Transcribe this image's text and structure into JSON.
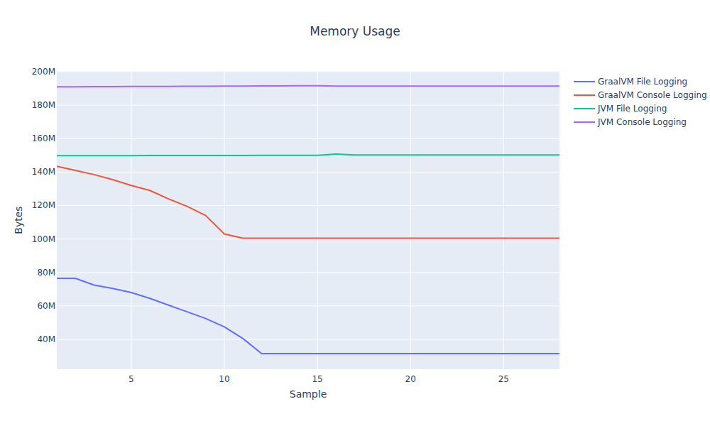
{
  "chart_data": {
    "type": "line",
    "title": "Memory Usage",
    "x_label": "Sample",
    "y_label": "Bytes",
    "x": [
      1,
      2,
      3,
      4,
      5,
      6,
      7,
      8,
      9,
      10,
      11,
      12,
      13,
      14,
      15,
      16,
      17,
      18,
      19,
      20,
      21,
      22,
      23,
      24,
      25,
      26,
      27,
      28
    ],
    "series": [
      {
        "name": "GraalVM File Logging",
        "color": "#636efa",
        "values": [
          76500000,
          76500000,
          72500000,
          70500000,
          68000000,
          64500000,
          60500000,
          56500000,
          52500000,
          47500000,
          40500000,
          31500000,
          31500000,
          31500000,
          31500000,
          31500000,
          31500000,
          31500000,
          31500000,
          31500000,
          31500000,
          31500000,
          31500000,
          31500000,
          31500000,
          31500000,
          31500000,
          31500000
        ]
      },
      {
        "name": "GraalVM Console Logging",
        "color": "#EF553B",
        "values": [
          143500000,
          141000000,
          138500000,
          135500000,
          132000000,
          129000000,
          124000000,
          119500000,
          114000000,
          103000000,
          100500000,
          100500000,
          100500000,
          100500000,
          100500000,
          100500000,
          100500000,
          100500000,
          100500000,
          100500000,
          100500000,
          100500000,
          100500000,
          100500000,
          100500000,
          100500000,
          100500000,
          100500000
        ]
      },
      {
        "name": "JVM File Logging",
        "color": "#00cc96",
        "values": [
          149800000,
          149800000,
          149850000,
          149850000,
          149850000,
          149900000,
          149900000,
          149900000,
          149950000,
          149950000,
          149950000,
          150000000,
          150000000,
          150000000,
          150000000,
          150800000,
          150200000,
          150200000,
          150200000,
          150200000,
          150200000,
          150200000,
          150200000,
          150200000,
          150200000,
          150200000,
          150200000,
          150200000
        ]
      },
      {
        "name": "JVM Console Logging",
        "color": "#ab63fa",
        "values": [
          191000000,
          191000000,
          191100000,
          191100000,
          191200000,
          191200000,
          191200000,
          191300000,
          191300000,
          191400000,
          191400000,
          191500000,
          191500000,
          191600000,
          191600000,
          191400000,
          191400000,
          191400000,
          191400000,
          191400000,
          191400000,
          191400000,
          191400000,
          191400000,
          191400000,
          191400000,
          191400000,
          191400000
        ]
      }
    ],
    "xlim": [
      1,
      28
    ],
    "xticks": [
      5,
      10,
      15,
      20,
      25
    ],
    "ylim": [
      22200000,
      200400000
    ],
    "yticks": [
      {
        "value": 40000000,
        "label": "40M"
      },
      {
        "value": 60000000,
        "label": "60M"
      },
      {
        "value": 80000000,
        "label": "80M"
      },
      {
        "value": 100000000,
        "label": "100M"
      },
      {
        "value": 120000000,
        "label": "120M"
      },
      {
        "value": 140000000,
        "label": "140M"
      },
      {
        "value": 160000000,
        "label": "160M"
      },
      {
        "value": 180000000,
        "label": "180M"
      },
      {
        "value": 200000000,
        "label": "200M"
      }
    ],
    "grid": true,
    "legend": "right"
  }
}
